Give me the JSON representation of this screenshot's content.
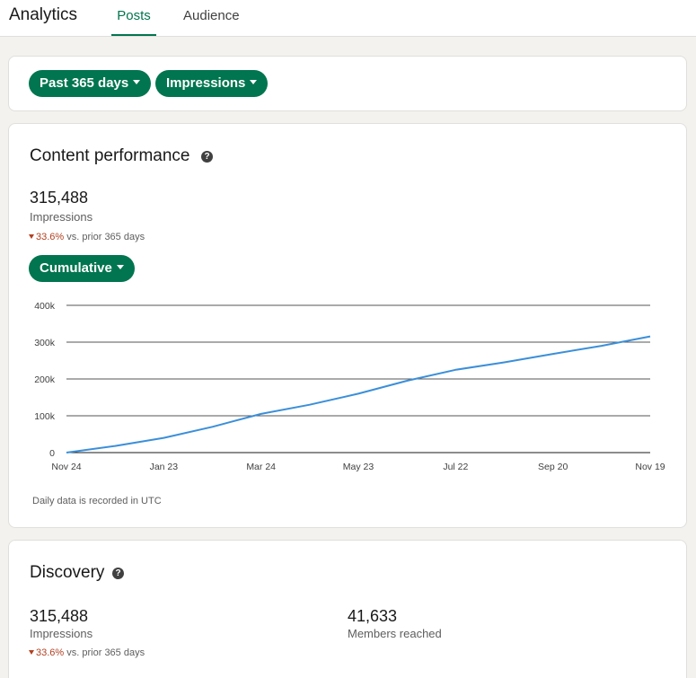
{
  "header": {
    "title": "Analytics",
    "tabs": [
      {
        "label": "Posts",
        "active": true
      },
      {
        "label": "Audience",
        "active": false
      }
    ]
  },
  "filters": {
    "date_range": "Past 365 days",
    "metric": "Impressions"
  },
  "content_performance": {
    "title": "Content performance",
    "value": "315,488",
    "label": "Impressions",
    "delta_value": "33.6%",
    "delta_text": "vs. prior 365 days",
    "mode": "Cumulative",
    "footnote": "Daily data is recorded in UTC"
  },
  "chart_data": {
    "type": "line",
    "x_ticks": [
      "Nov 24",
      "Jan 23",
      "Mar 24",
      "May 23",
      "Jul 22",
      "Sep 20",
      "Nov 19"
    ],
    "y_ticks": [
      "0",
      "100k",
      "200k",
      "300k",
      "400k"
    ],
    "ylim": [
      0,
      400000
    ],
    "grid": true,
    "series": [
      {
        "color": "#3b8fd9",
        "x": [
          "Nov 24",
          "Dec 24",
          "Jan 23",
          "Feb 22",
          "Mar 24",
          "Apr 23",
          "May 23",
          "Jun 22",
          "Jul 22",
          "Aug 21",
          "Sep 20",
          "Oct 20",
          "Nov 19"
        ],
        "values": [
          0,
          18000,
          40000,
          70000,
          105000,
          130000,
          160000,
          195000,
          225000,
          245000,
          268000,
          290000,
          315488
        ]
      }
    ]
  },
  "discovery": {
    "title": "Discovery",
    "impressions_value": "315,488",
    "impressions_label": "Impressions",
    "delta_value": "33.6%",
    "delta_text": "vs. prior 365 days",
    "members_value": "41,633",
    "members_label": "Members reached"
  },
  "icons": {
    "help": "question-circle-icon",
    "caret": "caret-down-icon",
    "delta": "down-triangle-icon"
  },
  "colors": {
    "accent": "#01754f",
    "line": "#3b8fd9",
    "negative": "#b24020"
  }
}
